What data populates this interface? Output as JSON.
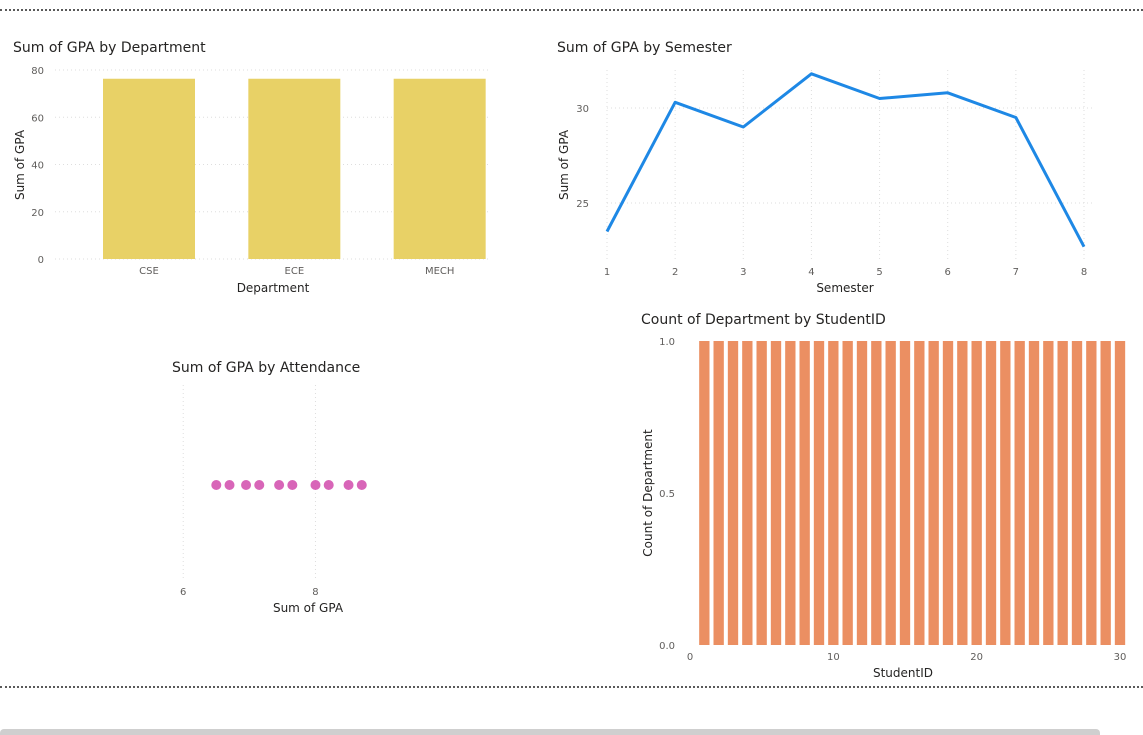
{
  "charts": {
    "dept": {
      "title": "Sum of GPA by Department"
    },
    "sem": {
      "title": "Sum of GPA by Semester"
    },
    "att": {
      "title": "Sum of GPA by Attendance"
    },
    "sid": {
      "title": "Count of Department by StudentID"
    }
  },
  "colors": {
    "bar_yellow": "#E8D166",
    "line_blue": "#1E88E5",
    "dot_pink": "#D865B8",
    "bar_orange": "#EB8F62",
    "grid": "#dedede",
    "axis_text": "#605e5c"
  },
  "chart_data": [
    {
      "id": "dept",
      "type": "bar",
      "title": "Sum of GPA by Department",
      "categories": [
        "CSE",
        "ECE",
        "MECH"
      ],
      "values": [
        76.3,
        76.3,
        76.3
      ],
      "xlabel": "Department",
      "ylabel": "Sum of GPA",
      "ylim": [
        0,
        80
      ],
      "yticks": [
        0,
        20,
        40,
        60,
        80
      ],
      "grid": true
    },
    {
      "id": "sem",
      "type": "line",
      "title": "Sum of GPA by Semester",
      "x": [
        1,
        2,
        3,
        4,
        5,
        6,
        7,
        8
      ],
      "values": [
        23.5,
        30.3,
        29.0,
        31.8,
        30.5,
        30.8,
        29.5,
        22.7
      ],
      "xlabel": "Semester",
      "ylabel": "Sum of GPA",
      "ylim": [
        22,
        32
      ],
      "yticks": [
        25,
        30
      ],
      "xticks": [
        1,
        2,
        3,
        4,
        5,
        6,
        7,
        8
      ],
      "grid": true
    },
    {
      "id": "att",
      "type": "scatter",
      "title": "Sum of GPA by Attendance",
      "x": [
        6.5,
        6.7,
        6.95,
        7.15,
        7.45,
        7.65,
        8.0,
        8.2,
        8.5,
        8.7
      ],
      "y": [
        0,
        0,
        0,
        0,
        0,
        0,
        0,
        0,
        0,
        0
      ],
      "xlabel": "Sum of GPA",
      "ylabel": "",
      "xlim": [
        5.8,
        8.9
      ],
      "xticks": [
        6,
        8
      ],
      "grid": true
    },
    {
      "id": "sid",
      "type": "bar",
      "title": "Count of Department by StudentID",
      "x": [
        1,
        2,
        3,
        4,
        5,
        6,
        7,
        8,
        9,
        10,
        11,
        12,
        13,
        14,
        15,
        16,
        17,
        18,
        19,
        20,
        21,
        22,
        23,
        24,
        25,
        26,
        27,
        28,
        29,
        30
      ],
      "values": [
        1,
        1,
        1,
        1,
        1,
        1,
        1,
        1,
        1,
        1,
        1,
        1,
        1,
        1,
        1,
        1,
        1,
        1,
        1,
        1,
        1,
        1,
        1,
        1,
        1,
        1,
        1,
        1,
        1,
        1
      ],
      "xlabel": "StudentID",
      "ylabel": "Count of Department",
      "ylim": [
        0,
        1
      ],
      "yticks": [
        "0.0",
        "0.5",
        "1.0"
      ],
      "xticks": [
        0,
        10,
        20,
        30
      ],
      "grid": false
    }
  ]
}
